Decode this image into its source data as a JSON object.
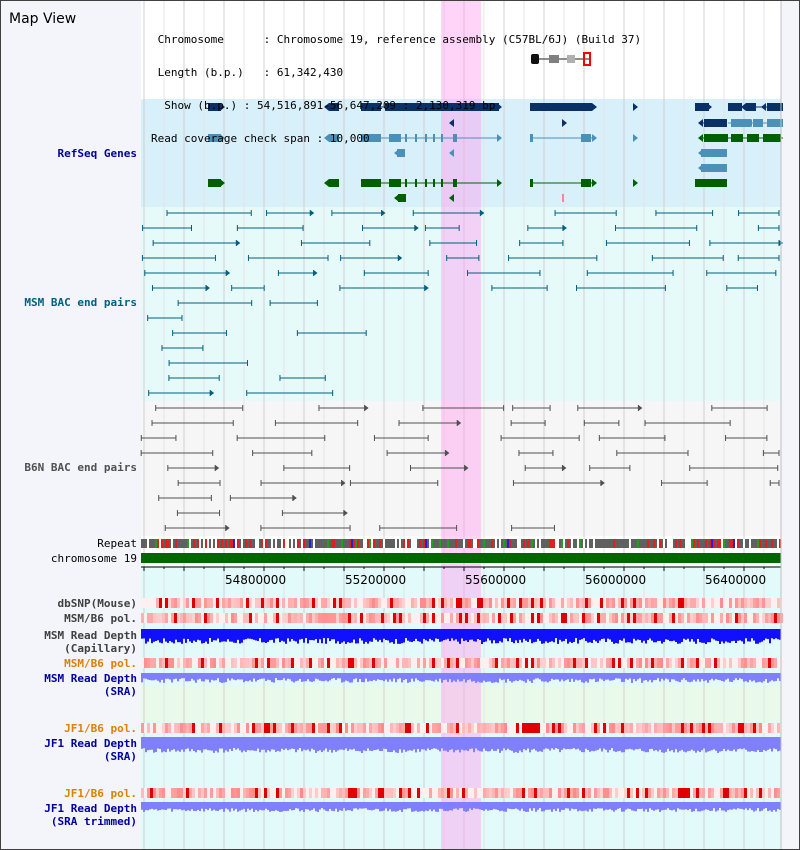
{
  "header": {
    "title": "Map View",
    "chromosome_label": "Chromosome",
    "chromosome_value": "Chromosome 19, reference assembly (C57BL/6J) (Build 37)",
    "length_label": "Length (b.p.)",
    "length_value": "61,342,430",
    "show_label": "Show (b.p.)",
    "show_value": "54,516,891-56,647,209 : 2,130,319 bp",
    "coverage_label": "Read coverage check span",
    "coverage_value": "10,000"
  },
  "tracks": {
    "refseq": "RefSeq Genes",
    "msm_bac": "MSM BAC end pairs",
    "b6n_bac": "B6N BAC end pairs",
    "repeat": "Repeat",
    "chromosome": "chromosome 19",
    "dbsnp": "dbSNP(Mouse)",
    "msm_b6_pol": "MSM/B6 pol.",
    "msm_read_depth_cap_1": "MSM Read Depth",
    "msm_read_depth_cap_2": "(Capillary)",
    "msm_b6_pol_2": "MSM/B6 pol.",
    "msm_read_depth_sra_1": "MSM Read Depth",
    "msm_read_depth_sra_2": "(SRA)",
    "jf1_b6_pol": "JF1/B6 pol.",
    "jf1_read_depth_sra_1": "JF1 Read Depth",
    "jf1_read_depth_sra_2": "(SRA)",
    "jf1_b6_pol_2": "JF1/B6 pol.",
    "jf1_read_depth_trim_1": "JF1 Read Depth",
    "jf1_read_depth_trim_2": "(SRA trimmed)"
  },
  "axis": {
    "ticks": [
      "54800000",
      "55200000",
      "55600000",
      "56000000",
      "56400000"
    ]
  },
  "colors": {
    "refseq_dark": "#0a3068",
    "refseq_mid": "#4c90b8",
    "refseq_green": "#006000",
    "msm_bac": "#006080",
    "b6n_bac": "#505050",
    "chromosome": "#006600",
    "read_depth_dark": "#1010ff",
    "read_depth_light": "#8080ff",
    "highlight": "#ffa0f0"
  }
}
